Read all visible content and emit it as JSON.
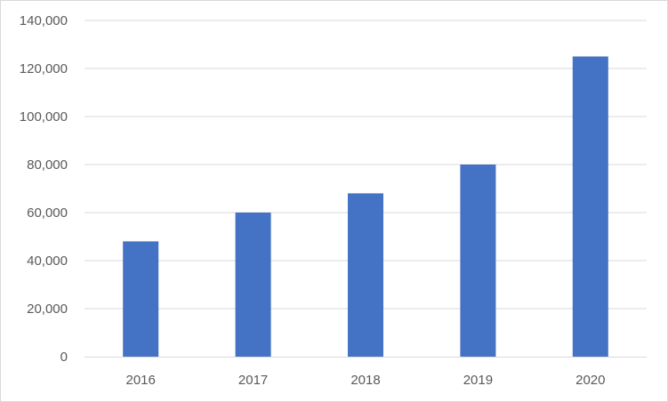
{
  "chart_data": {
    "type": "bar",
    "categories": [
      "2016",
      "2017",
      "2018",
      "2019",
      "2020"
    ],
    "values": [
      48000,
      60000,
      68000,
      80000,
      125000
    ],
    "title": "",
    "xlabel": "",
    "ylabel": "",
    "ylim": [
      0,
      140000
    ],
    "yticks": [
      0,
      20000,
      40000,
      60000,
      80000,
      100000,
      120000,
      140000
    ],
    "ytick_labels": [
      "0",
      "20,000",
      "40,000",
      "60,000",
      "80,000",
      "100,000",
      "120,000",
      "140,000"
    ],
    "grid": true,
    "legend": "none",
    "bar_color": "#4472C4"
  }
}
